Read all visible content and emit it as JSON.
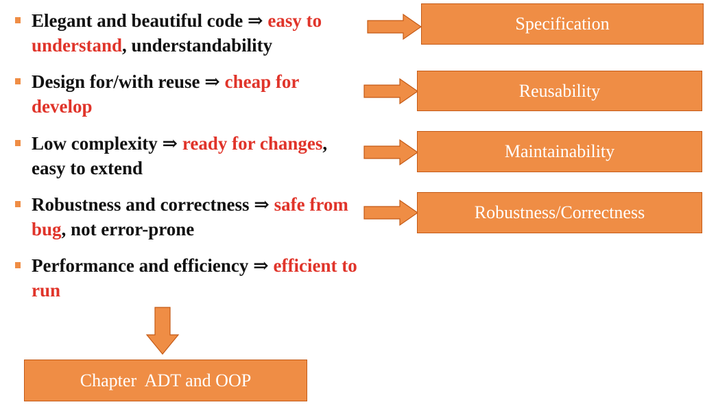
{
  "colors": {
    "accent": "#ef8d45",
    "accent_border": "#c45a16",
    "highlight_text": "#e0342a",
    "body_text": "#111111"
  },
  "bullets": [
    {
      "part1": "Elegant and beautiful code ⇒ ",
      "highlight": "easy to understand",
      "part2": ", understandability"
    },
    {
      "part1": "Design for/with reuse ⇒  ",
      "highlight": "cheap for develop",
      "part2": ""
    },
    {
      "part1": "Low complexity ⇒ ",
      "highlight": "ready for changes",
      "part2": ", easy to extend"
    },
    {
      "part1": "Robustness and correctness ⇒ ",
      "highlight": "safe from bug",
      "part2": ", not error-prone"
    },
    {
      "part1": "Performance and efficiency ⇒ ",
      "highlight": "efficient to run",
      "part2": ""
    }
  ],
  "boxes": {
    "specification": "Specification",
    "reusability": "Reusability",
    "maintainability": "Maintainability",
    "robustness": "Robustness/Correctness",
    "chapter": "Chapter  ADT and OOP"
  }
}
